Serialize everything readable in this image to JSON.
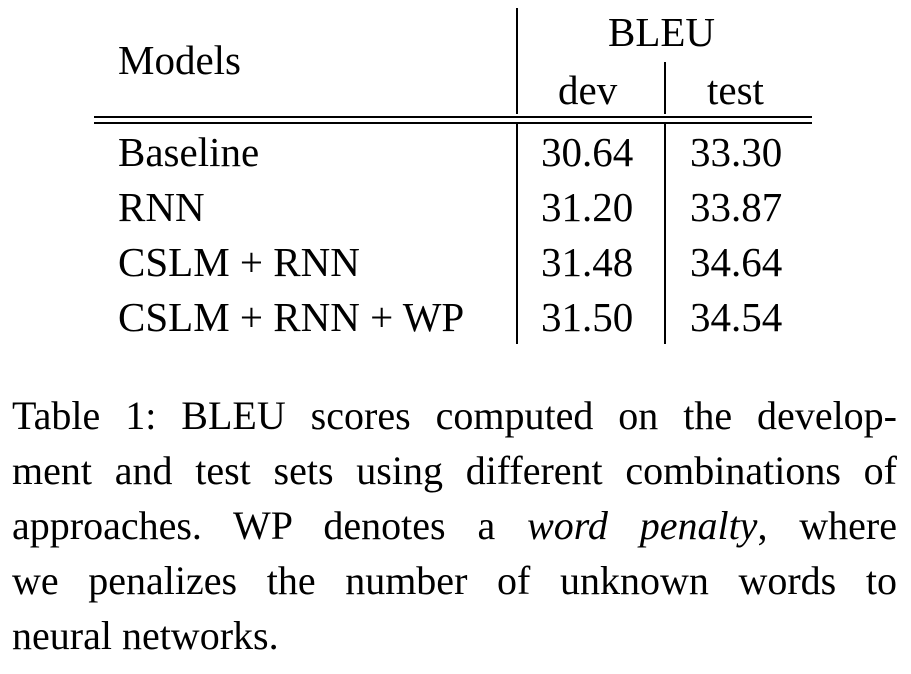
{
  "table": {
    "header": {
      "models": "Models",
      "group": "BLEU",
      "dev": "dev",
      "test": "test"
    },
    "rows": [
      {
        "model": "Baseline",
        "dev": "30.64",
        "test": "33.30"
      },
      {
        "model": "RNN",
        "dev": "31.20",
        "test": "33.87"
      },
      {
        "model": "CSLM + RNN",
        "dev": "31.48",
        "test": "34.64"
      },
      {
        "model": "CSLM + RNN + WP",
        "dev": "31.50",
        "test": "34.54"
      }
    ]
  },
  "caption": {
    "line1": "Table 1: BLEU scores computed on the develop-",
    "line2": "ment and test sets using different combinations of",
    "line3_a": "approaches.  WP denotes a ",
    "line3_em": "word penalty",
    "line3_b": ", where",
    "line4": "we penalizes the number of unknown words to",
    "line5": "neural networks."
  }
}
